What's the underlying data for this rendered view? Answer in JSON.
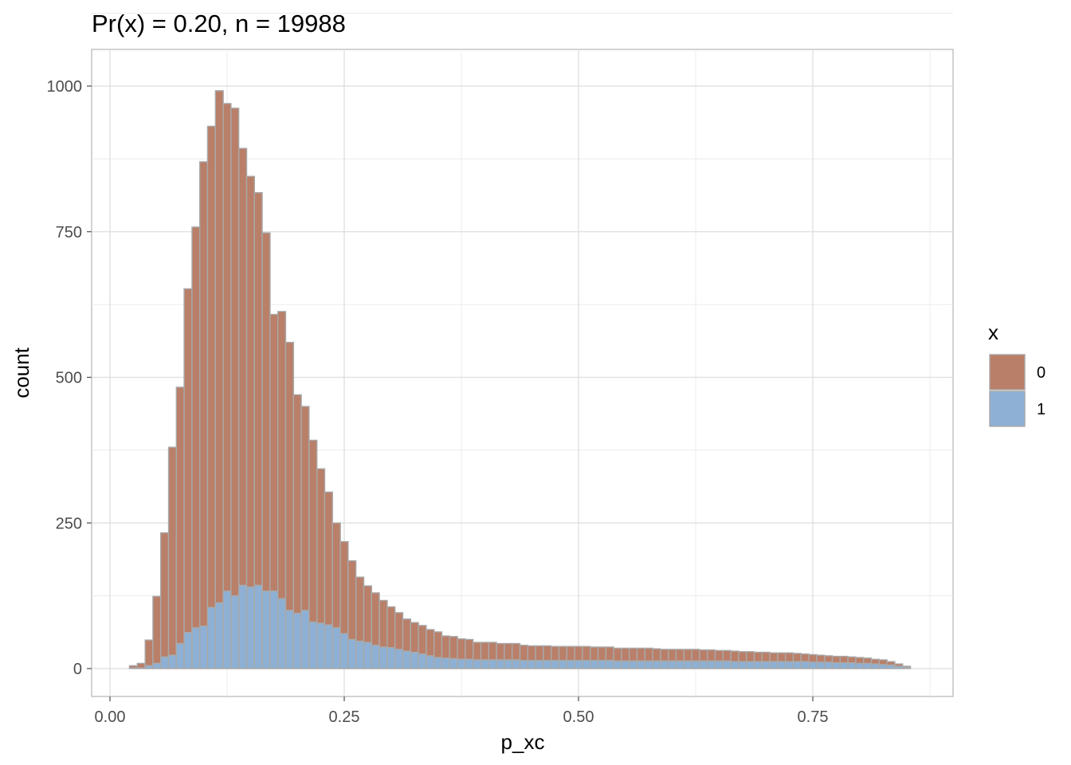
{
  "chart_data": {
    "type": "bar",
    "subtype": "stacked-histogram",
    "title": "Pr(x) = 0.20, n = 19988",
    "xlabel": "p_xc",
    "ylabel": "count",
    "xlim": [
      0.0,
      0.87
    ],
    "ylim": [
      0,
      1050
    ],
    "x_ticks": [
      0.0,
      0.25,
      0.5,
      0.75
    ],
    "x_tick_labels": [
      "0.00",
      "0.25",
      "0.50",
      "0.75"
    ],
    "y_ticks": [
      0,
      250,
      500,
      750,
      1000
    ],
    "y_tick_labels": [
      "0",
      "250",
      "500",
      "750",
      "1000"
    ],
    "grid": true,
    "legend": {
      "title": "x",
      "position": "right",
      "entries": [
        {
          "label": "0",
          "color": "#b97f69"
        },
        {
          "label": "1",
          "color": "#8eb0d4"
        }
      ]
    },
    "bin_width": 0.00833,
    "x": [
      0.025,
      0.0333,
      0.0417,
      0.05,
      0.0583,
      0.0667,
      0.075,
      0.0833,
      0.0917,
      0.1,
      0.1083,
      0.1167,
      0.125,
      0.1333,
      0.1417,
      0.15,
      0.1583,
      0.1667,
      0.175,
      0.1833,
      0.1917,
      0.2,
      0.2083,
      0.2167,
      0.225,
      0.2333,
      0.2417,
      0.25,
      0.2583,
      0.2667,
      0.275,
      0.2833,
      0.2917,
      0.3,
      0.3083,
      0.3167,
      0.325,
      0.3333,
      0.3417,
      0.35,
      0.3583,
      0.3667,
      0.375,
      0.3833,
      0.3917,
      0.4,
      0.4083,
      0.4167,
      0.425,
      0.4333,
      0.4417,
      0.45,
      0.4583,
      0.4667,
      0.475,
      0.4833,
      0.4917,
      0.5,
      0.5083,
      0.5167,
      0.525,
      0.5333,
      0.5417,
      0.55,
      0.5583,
      0.5667,
      0.575,
      0.5833,
      0.5917,
      0.6,
      0.6083,
      0.6167,
      0.625,
      0.6333,
      0.6417,
      0.65,
      0.6583,
      0.6667,
      0.675,
      0.6833,
      0.6917,
      0.7,
      0.7083,
      0.7167,
      0.725,
      0.7333,
      0.7417,
      0.75,
      0.7583,
      0.7667,
      0.775,
      0.7833,
      0.7917,
      0.8,
      0.8083,
      0.8167,
      0.825,
      0.8333,
      0.8417,
      0.85
    ],
    "series": [
      {
        "name": "0",
        "color": "#b97f69",
        "values": [
          4,
          8,
          44,
          115,
          213,
          357,
          440,
          590,
          688,
          797,
          826,
          879,
          837,
          837,
          750,
          705,
          674,
          615,
          475,
          493,
          460,
          375,
          350,
          312,
          265,
          228,
          180,
          158,
          135,
          110,
          97,
          90,
          80,
          70,
          63,
          55,
          51,
          49,
          45,
          44,
          38,
          38,
          35,
          34,
          30,
          30,
          30,
          28,
          28,
          28,
          26,
          25,
          25,
          25,
          24,
          24,
          24,
          24,
          24,
          23,
          23,
          23,
          22,
          22,
          22,
          22,
          22,
          21,
          20,
          20,
          20,
          20,
          20,
          19,
          19,
          18,
          18,
          18,
          17,
          17,
          16,
          16,
          15,
          15,
          15,
          14,
          13,
          13,
          12,
          11,
          11,
          11,
          10,
          10,
          9,
          8,
          8,
          6,
          4,
          2
        ]
      },
      {
        "name": "1",
        "color": "#8eb0d4",
        "values": [
          1,
          1,
          5,
          9,
          20,
          23,
          43,
          62,
          70,
          73,
          105,
          113,
          133,
          125,
          143,
          140,
          143,
          133,
          133,
          120,
          100,
          95,
          100,
          80,
          78,
          75,
          70,
          60,
          50,
          47,
          45,
          40,
          37,
          36,
          33,
          30,
          28,
          25,
          22,
          19,
          18,
          17,
          16,
          16,
          15,
          15,
          15,
          15,
          15,
          15,
          14,
          14,
          14,
          14,
          14,
          14,
          14,
          14,
          14,
          14,
          14,
          14,
          13,
          13,
          13,
          13,
          13,
          13,
          13,
          13,
          13,
          13,
          13,
          13,
          13,
          13,
          13,
          12,
          12,
          12,
          12,
          12,
          12,
          12,
          12,
          12,
          12,
          11,
          11,
          11,
          10,
          10,
          10,
          9,
          9,
          8,
          7,
          6,
          4,
          2
        ]
      }
    ]
  }
}
